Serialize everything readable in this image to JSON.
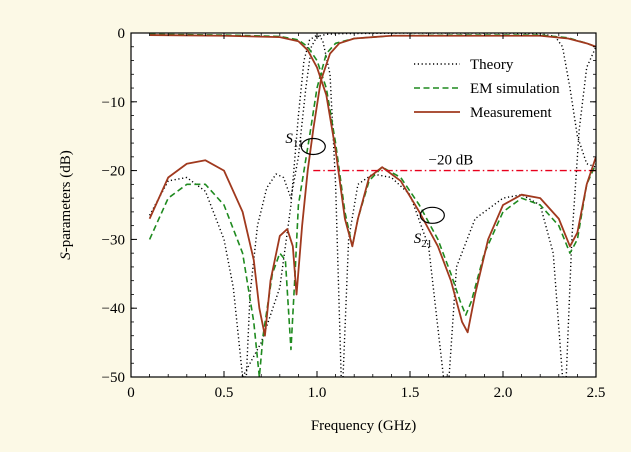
{
  "chart_data": {
    "type": "line",
    "title": "",
    "xlabel": "Frequency (GHz)",
    "ylabel_italic": "S",
    "ylabel_rest": "-parameters (dB)",
    "xlim": [
      0,
      2.5
    ],
    "ylim": [
      -50,
      0
    ],
    "xticks": [
      0,
      0.5,
      1.0,
      1.5,
      2.0,
      2.5
    ],
    "xtick_labels": [
      "0",
      "0.5",
      "1.0",
      "1.5",
      "2.0",
      "2.5"
    ],
    "yticks": [
      0,
      -10,
      -20,
      -30,
      -40,
      -50
    ],
    "ytick_labels": [
      "0",
      "−10",
      "−20",
      "−30",
      "−40",
      "−50"
    ],
    "grid": false,
    "legend_position": "top-right",
    "colors": {
      "theory": "#000000",
      "em": "#1f8a1f",
      "meas": "#a0391e",
      "ref": "#e8001c"
    },
    "series": [
      {
        "name": "Theory",
        "style": "dotted",
        "color": "#000000",
        "s11": [
          [
            0.1,
            -26.5
          ],
          [
            0.2,
            -21.5
          ],
          [
            0.3,
            -21
          ],
          [
            0.4,
            -23
          ],
          [
            0.5,
            -30
          ],
          [
            0.55,
            -37
          ],
          [
            0.6,
            -50
          ],
          [
            0.62,
            -50
          ],
          [
            0.64,
            -38
          ],
          [
            0.68,
            -28
          ],
          [
            0.73,
            -22.5
          ],
          [
            0.78,
            -20.5
          ],
          [
            0.82,
            -21
          ],
          [
            0.86,
            -24
          ],
          [
            0.9,
            -18
          ],
          [
            0.94,
            -8
          ],
          [
            0.97,
            -2
          ],
          [
            1.0,
            -0.5
          ],
          [
            1.05,
            -0.2
          ],
          [
            1.1,
            -0.1
          ],
          [
            1.5,
            0
          ],
          [
            2.0,
            0
          ],
          [
            2.2,
            -0.1
          ],
          [
            2.28,
            -0.5
          ],
          [
            2.32,
            -2
          ],
          [
            2.36,
            -8
          ],
          [
            2.4,
            -15
          ],
          [
            2.45,
            -19
          ],
          [
            2.5,
            -19.5
          ]
        ],
        "s21": [
          [
            0.6,
            -50
          ],
          [
            0.7,
            -45
          ],
          [
            0.8,
            -37
          ],
          [
            0.86,
            -25
          ],
          [
            0.9,
            -12
          ],
          [
            0.93,
            -4
          ],
          [
            0.96,
            -1
          ],
          [
            1.0,
            -0.3
          ],
          [
            1.03,
            -1
          ],
          [
            1.07,
            -6
          ],
          [
            1.1,
            -22
          ],
          [
            1.13,
            -50
          ],
          [
            1.14,
            -50
          ],
          [
            1.17,
            -30
          ],
          [
            1.22,
            -22
          ],
          [
            1.3,
            -20.5
          ],
          [
            1.4,
            -21
          ],
          [
            1.5,
            -23.5
          ],
          [
            1.6,
            -31
          ],
          [
            1.68,
            -50
          ],
          [
            1.71,
            -50
          ],
          [
            1.75,
            -34
          ],
          [
            1.85,
            -27
          ],
          [
            2.0,
            -24
          ],
          [
            2.1,
            -23.5
          ],
          [
            2.2,
            -25
          ],
          [
            2.27,
            -32
          ],
          [
            2.32,
            -50
          ],
          [
            2.34,
            -50
          ],
          [
            2.37,
            -30
          ],
          [
            2.41,
            -14
          ],
          [
            2.45,
            -5
          ],
          [
            2.5,
            -2
          ]
        ]
      },
      {
        "name": "EM simulation",
        "style": "dashed",
        "color": "#1f8a1f",
        "s11": [
          [
            0.1,
            -30
          ],
          [
            0.2,
            -24
          ],
          [
            0.3,
            -22
          ],
          [
            0.4,
            -22
          ],
          [
            0.5,
            -25
          ],
          [
            0.6,
            -32
          ],
          [
            0.66,
            -42
          ],
          [
            0.69,
            -50
          ],
          [
            0.71,
            -44
          ],
          [
            0.76,
            -35
          ],
          [
            0.8,
            -32
          ],
          [
            0.83,
            -33
          ],
          [
            0.86,
            -46
          ],
          [
            0.88,
            -36
          ],
          [
            0.9,
            -25
          ],
          [
            0.93,
            -20
          ],
          [
            0.96,
            -15
          ],
          [
            1.0,
            -8
          ],
          [
            1.05,
            -3
          ],
          [
            1.1,
            -1.5
          ],
          [
            1.2,
            -0.8
          ],
          [
            1.4,
            -0.4
          ],
          [
            1.8,
            -0.3
          ],
          [
            2.2,
            -0.3
          ],
          [
            2.35,
            -0.7
          ],
          [
            2.45,
            -1.5
          ],
          [
            2.5,
            -2
          ]
        ],
        "s21": [
          [
            0.1,
            -0.2
          ],
          [
            0.5,
            -0.3
          ],
          [
            0.8,
            -0.5
          ],
          [
            0.9,
            -1
          ],
          [
            0.95,
            -2
          ],
          [
            1.0,
            -4
          ],
          [
            1.05,
            -8
          ],
          [
            1.1,
            -16
          ],
          [
            1.15,
            -26
          ],
          [
            1.19,
            -31
          ],
          [
            1.22,
            -27
          ],
          [
            1.28,
            -21.5
          ],
          [
            1.35,
            -19.5
          ],
          [
            1.45,
            -21
          ],
          [
            1.55,
            -25
          ],
          [
            1.65,
            -30
          ],
          [
            1.72,
            -35
          ],
          [
            1.77,
            -39
          ],
          [
            1.8,
            -41
          ],
          [
            1.83,
            -39
          ],
          [
            1.9,
            -32
          ],
          [
            2.0,
            -26
          ],
          [
            2.1,
            -24
          ],
          [
            2.2,
            -25
          ],
          [
            2.3,
            -28
          ],
          [
            2.36,
            -32
          ],
          [
            2.4,
            -30
          ],
          [
            2.45,
            -22
          ],
          [
            2.5,
            -19
          ]
        ]
      },
      {
        "name": "Measurement",
        "style": "solid",
        "color": "#a0391e",
        "s11": [
          [
            0.1,
            -27
          ],
          [
            0.2,
            -21
          ],
          [
            0.3,
            -19
          ],
          [
            0.4,
            -18.5
          ],
          [
            0.5,
            -20
          ],
          [
            0.6,
            -26
          ],
          [
            0.66,
            -33
          ],
          [
            0.69,
            -40
          ],
          [
            0.72,
            -44
          ],
          [
            0.75,
            -36
          ],
          [
            0.8,
            -29.5
          ],
          [
            0.84,
            -28.5
          ],
          [
            0.87,
            -31
          ],
          [
            0.89,
            -38
          ],
          [
            0.92,
            -28
          ],
          [
            0.95,
            -20
          ],
          [
            0.98,
            -14
          ],
          [
            1.02,
            -7
          ],
          [
            1.07,
            -3
          ],
          [
            1.12,
            -1.5
          ],
          [
            1.2,
            -0.8
          ],
          [
            1.4,
            -0.4
          ],
          [
            1.8,
            -0.4
          ],
          [
            2.2,
            -0.4
          ],
          [
            2.35,
            -0.8
          ],
          [
            2.45,
            -1.5
          ],
          [
            2.5,
            -2
          ]
        ],
        "s21": [
          [
            0.1,
            -0.3
          ],
          [
            0.5,
            -0.4
          ],
          [
            0.8,
            -0.6
          ],
          [
            0.9,
            -1.2
          ],
          [
            0.95,
            -2.5
          ],
          [
            1.0,
            -5
          ],
          [
            1.05,
            -9
          ],
          [
            1.1,
            -17
          ],
          [
            1.15,
            -27
          ],
          [
            1.19,
            -31
          ],
          [
            1.22,
            -27
          ],
          [
            1.28,
            -21
          ],
          [
            1.35,
            -19.5
          ],
          [
            1.45,
            -21.5
          ],
          [
            1.55,
            -26
          ],
          [
            1.65,
            -31
          ],
          [
            1.72,
            -36
          ],
          [
            1.78,
            -42
          ],
          [
            1.81,
            -43.5
          ],
          [
            1.85,
            -38
          ],
          [
            1.92,
            -30
          ],
          [
            2.0,
            -25
          ],
          [
            2.1,
            -23.5
          ],
          [
            2.2,
            -24
          ],
          [
            2.3,
            -27
          ],
          [
            2.36,
            -31
          ],
          [
            2.4,
            -29
          ],
          [
            2.45,
            -22
          ],
          [
            2.5,
            -18
          ]
        ]
      }
    ],
    "reference_line": {
      "y": -20,
      "x_start": 0.98,
      "x_end": 2.5,
      "label": "−20 dB",
      "label_x": 1.72
    },
    "annotations": [
      {
        "id": "s11",
        "text_main": "S",
        "text_sub": "11",
        "ellipse_x": 0.98,
        "ellipse_y": -16.5,
        "text_x": 0.83,
        "text_y": -16
      },
      {
        "id": "s21",
        "text_main": "S",
        "text_sub": "21",
        "ellipse_x": 1.62,
        "ellipse_y": -26.5,
        "text_x": 1.52,
        "text_y": -30.5
      }
    ]
  }
}
